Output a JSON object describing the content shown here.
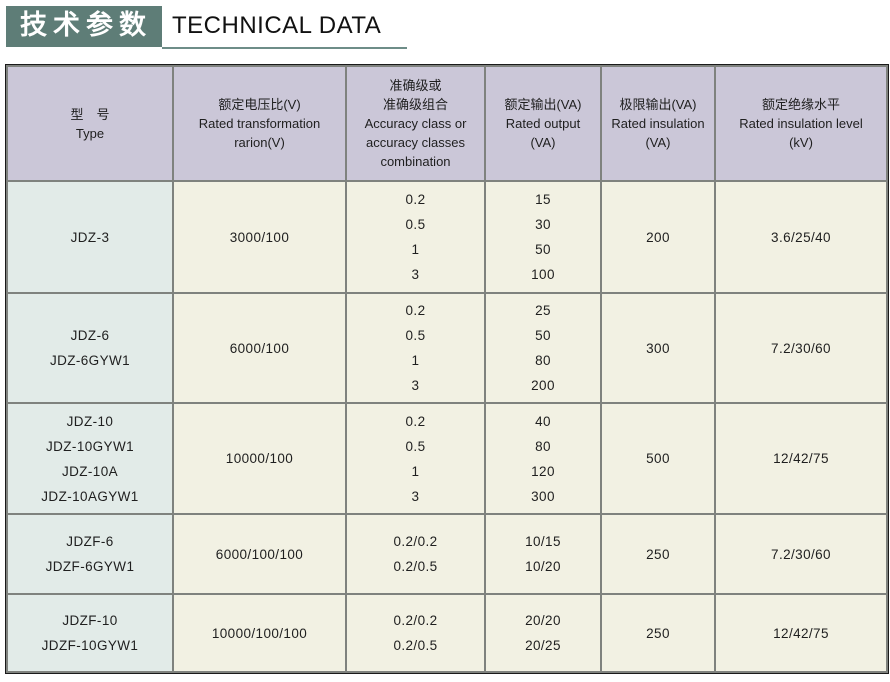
{
  "title": {
    "zh": "技术参数",
    "en": "TECHNICAL DATA"
  },
  "colors": {
    "title_bg": "#5e7d77",
    "underline": "#6e8d88",
    "header_bg": "#cbc7d8",
    "type_col_bg": "#e2ebe8",
    "cell_bg": "#f2f1e3",
    "border_inner": "#7f827e",
    "border_outer": "#1a1a1a"
  },
  "table": {
    "headers": [
      {
        "lines": [
          "型　号",
          "Type"
        ]
      },
      {
        "lines": [
          "额定电压比(V)",
          "Rated transformation",
          "rarion(V)"
        ]
      },
      {
        "lines": [
          "准确级或",
          "准确级组合",
          "Accuracy class or",
          "accuracy classes",
          "combination"
        ]
      },
      {
        "lines": [
          "额定输出(VA)",
          "Rated output",
          "(VA)"
        ]
      },
      {
        "lines": [
          "极限输出(VA)",
          "Rated insulation",
          "(VA)"
        ]
      },
      {
        "lines": [
          "额定绝缘水平",
          "Rated insulation level",
          "(kV)"
        ]
      }
    ],
    "rows": [
      {
        "cells": [
          [
            "JDZ-3"
          ],
          [
            "3000/100"
          ],
          [
            "0.2",
            "0.5",
            "1",
            "3"
          ],
          [
            "15",
            "30",
            "50",
            "100"
          ],
          [
            "200"
          ],
          [
            "3.6/25/40"
          ]
        ]
      },
      {
        "cells": [
          [
            "JDZ-6",
            "JDZ-6GYW1"
          ],
          [
            "6000/100"
          ],
          [
            "0.2",
            "0.5",
            "1",
            "3"
          ],
          [
            "25",
            "50",
            "80",
            "200"
          ],
          [
            "300"
          ],
          [
            "7.2/30/60"
          ]
        ]
      },
      {
        "cells": [
          [
            "JDZ-10",
            "JDZ-10GYW1",
            "JDZ-10A",
            "JDZ-10AGYW1"
          ],
          [
            "10000/100"
          ],
          [
            "0.2",
            "0.5",
            "1",
            "3"
          ],
          [
            "40",
            "80",
            "120",
            "300"
          ],
          [
            "500"
          ],
          [
            "12/42/75"
          ]
        ]
      },
      {
        "cells": [
          [
            "JDZF-6",
            "JDZF-6GYW1"
          ],
          [
            "6000/100/100"
          ],
          [
            "0.2/0.2",
            "0.2/0.5"
          ],
          [
            "10/15",
            "10/20"
          ],
          [
            "250"
          ],
          [
            "7.2/30/60"
          ]
        ]
      },
      {
        "cells": [
          [
            "JDZF-10",
            "JDZF-10GYW1"
          ],
          [
            "10000/100/100"
          ],
          [
            "0.2/0.2",
            "0.2/0.5"
          ],
          [
            "20/20",
            "20/25"
          ],
          [
            "250"
          ],
          [
            "12/42/75"
          ]
        ]
      }
    ]
  }
}
